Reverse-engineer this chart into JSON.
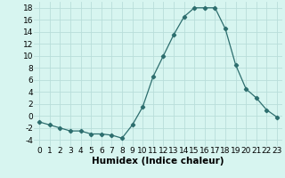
{
  "x": [
    0,
    1,
    2,
    3,
    4,
    5,
    6,
    7,
    8,
    9,
    10,
    11,
    12,
    13,
    14,
    15,
    16,
    17,
    18,
    19,
    20,
    21,
    22,
    23
  ],
  "y": [
    -1,
    -1.5,
    -2,
    -2.5,
    -2.5,
    -3,
    -3,
    -3.2,
    -3.7,
    -1.5,
    1.5,
    6.5,
    10,
    13.5,
    16.5,
    18,
    18,
    18,
    14.5,
    8.5,
    4.5,
    3,
    1,
    -0.2
  ],
  "xlabel": "Humidex (Indice chaleur)",
  "xlim": [
    -0.5,
    23.5
  ],
  "ylim": [
    -5,
    19
  ],
  "yticks": [
    -4,
    -2,
    0,
    2,
    4,
    6,
    8,
    10,
    12,
    14,
    16,
    18
  ],
  "xticks": [
    0,
    1,
    2,
    3,
    4,
    5,
    6,
    7,
    8,
    9,
    10,
    11,
    12,
    13,
    14,
    15,
    16,
    17,
    18,
    19,
    20,
    21,
    22,
    23
  ],
  "line_color": "#2d6e6e",
  "marker": "D",
  "marker_size": 2.2,
  "bg_color": "#d7f5f0",
  "grid_color": "#b8deda",
  "xlabel_fontsize": 7.5,
  "tick_fontsize": 6.5
}
